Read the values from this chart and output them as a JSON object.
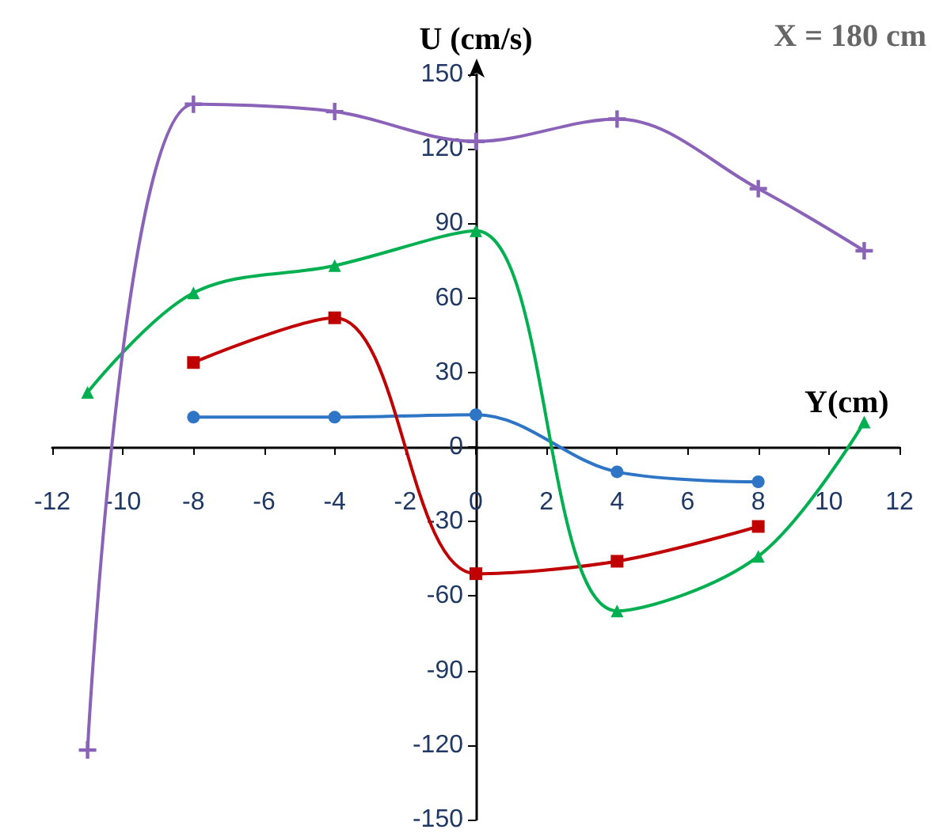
{
  "chart_data": {
    "type": "line",
    "title": "X = 180 cm",
    "xlabel": "Y(cm)",
    "ylabel": "U (cm/s)",
    "xlim": [
      -12,
      12
    ],
    "xticks": [
      -12,
      -10,
      -8,
      -6,
      -4,
      -2,
      0,
      2,
      4,
      6,
      8,
      10,
      12
    ],
    "ylim": [
      -150,
      150
    ],
    "yticks": [
      -150,
      -120,
      -90,
      -60,
      -30,
      0,
      30,
      60,
      90,
      120,
      150
    ],
    "grid": false,
    "legend": false,
    "series": [
      {
        "color": "#2e75c6",
        "marker": "circle",
        "x": [
          -8,
          -4,
          0,
          4,
          8
        ],
        "values": [
          12,
          12,
          13,
          -10,
          -14
        ]
      },
      {
        "color": "#c00000",
        "marker": "square",
        "x": [
          -8,
          -4,
          0,
          4,
          8
        ],
        "values": [
          34,
          52,
          -51,
          -46,
          -32
        ]
      },
      {
        "color": "#00b050",
        "marker": "triangle",
        "x": [
          -11,
          -8,
          -4,
          0,
          4,
          8,
          11
        ],
        "values": [
          22,
          62,
          73,
          87,
          -66,
          -44,
          10
        ]
      },
      {
        "color": "#8a63b8",
        "marker": "cross",
        "x": [
          -11,
          -8,
          -4,
          0,
          4,
          8,
          11
        ],
        "values": [
          -122,
          138,
          135,
          123,
          132,
          104,
          79
        ]
      }
    ]
  }
}
